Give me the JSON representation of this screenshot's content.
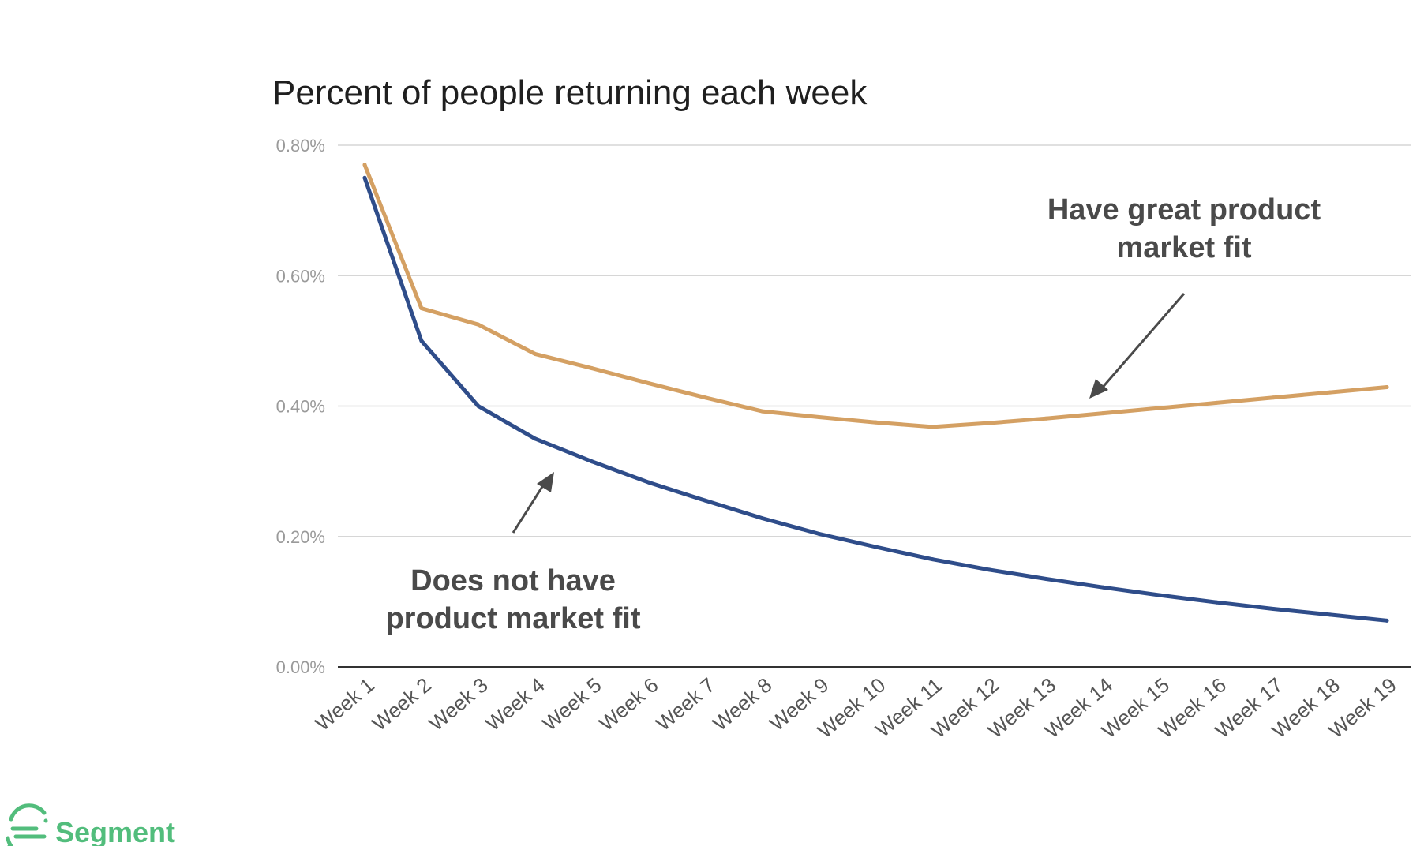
{
  "chart_data": {
    "type": "line",
    "title": "Percent of people returning each week",
    "xlabel": "",
    "ylabel": "",
    "categories": [
      "Week 1",
      "Week 2",
      "Week 3",
      "Week 4",
      "Week 5",
      "Week 6",
      "Week 7",
      "Week 8",
      "Week 9",
      "Week 10",
      "Week 11",
      "Week 12",
      "Week 13",
      "Week 14",
      "Week 15",
      "Week 16",
      "Week 17",
      "Week 18",
      "Week 19"
    ],
    "ylim": [
      0,
      0.8
    ],
    "yticks": [
      "0.00%",
      "0.20%",
      "0.40%",
      "0.60%",
      "0.80%"
    ],
    "grid": true,
    "series": [
      {
        "name": "",
        "color": "#d4a063",
        "values": [
          0.77,
          0.55,
          0.525,
          0.48,
          0.458,
          0.435,
          0.413,
          0.392,
          0.383,
          0.375,
          0.368,
          0.374,
          0.381,
          0.389,
          0.397,
          0.405,
          0.413,
          0.421,
          0.429
        ]
      },
      {
        "name": "",
        "color": "#2f4d8a",
        "values": [
          0.75,
          0.5,
          0.4,
          0.35,
          0.315,
          0.283,
          0.255,
          0.228,
          0.204,
          0.184,
          0.165,
          0.149,
          0.135,
          0.122,
          0.11,
          0.099,
          0.089,
          0.08,
          0.071
        ]
      }
    ],
    "annotations": [
      {
        "id": "great-fit",
        "lines": [
          "Have great product",
          "market fit"
        ]
      },
      {
        "id": "no-fit",
        "lines": [
          "Does not have",
          "product market fit"
        ]
      }
    ]
  },
  "brand": {
    "name": "Segment",
    "color": "#52bd7c"
  }
}
